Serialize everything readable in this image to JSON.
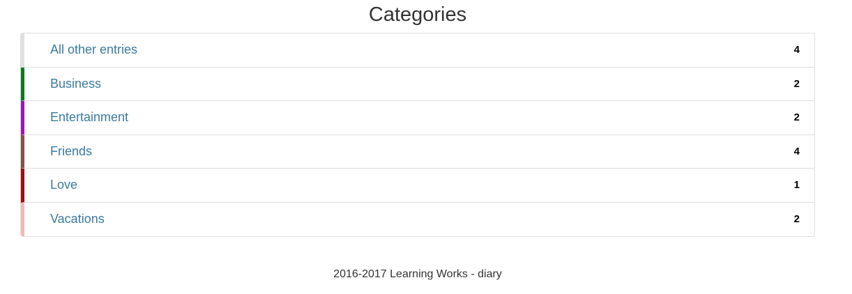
{
  "page": {
    "title": "Categories",
    "footer": "2016-2017 Learning Works - diary"
  },
  "categories": [
    {
      "label": "All other entries",
      "count": "4",
      "color": "#e0e0e0"
    },
    {
      "label": "Business",
      "count": "2",
      "color": "#0a7a1a"
    },
    {
      "label": "Entertainment",
      "count": "2",
      "color": "#9b16b8"
    },
    {
      "label": "Friends",
      "count": "4",
      "color": "#8a5044"
    },
    {
      "label": "Love",
      "count": "1",
      "color": "#9a0e14"
    },
    {
      "label": "Vacations",
      "count": "2",
      "color": "#f2b8bc"
    }
  ]
}
